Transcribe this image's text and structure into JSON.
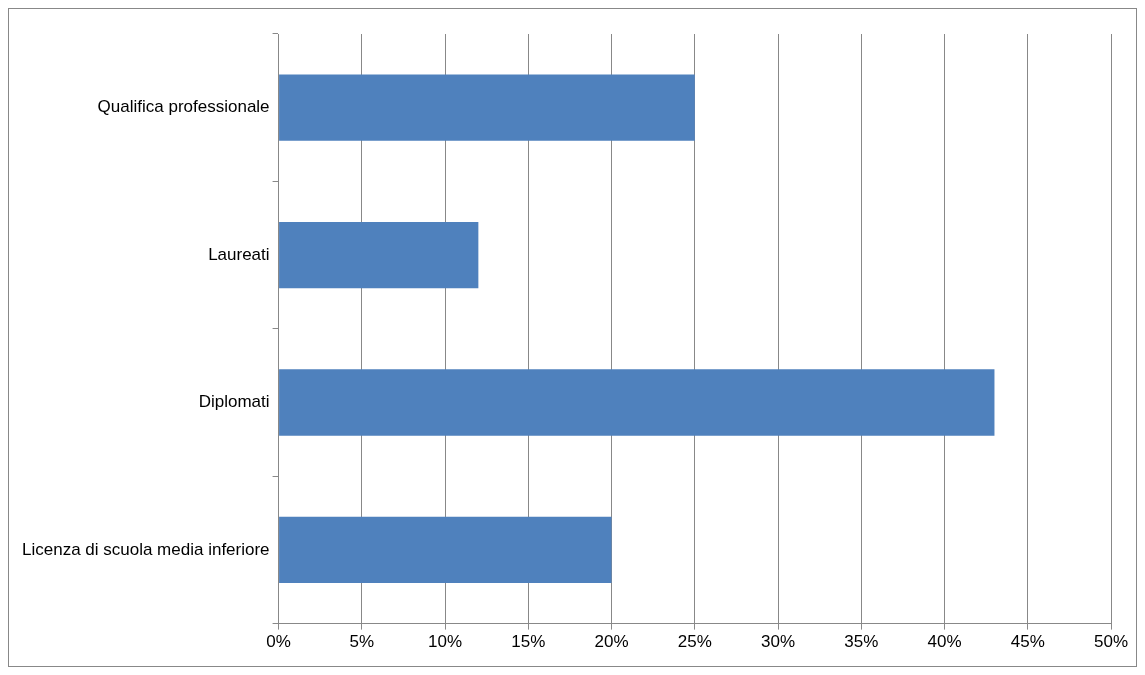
{
  "chart_data": {
    "type": "bar",
    "orientation": "horizontal",
    "categories": [
      "Qualifica professionale",
      "Laureati",
      "Diplomati",
      "Licenza di scuola media inferiore"
    ],
    "values": [
      25,
      12,
      43,
      20
    ],
    "color": "#4f81bd",
    "xlim": [
      0,
      50
    ],
    "xticks": [
      {
        "value": 0,
        "label": "0%"
      },
      {
        "value": 5,
        "label": "5%"
      },
      {
        "value": 10,
        "label": "10%"
      },
      {
        "value": 15,
        "label": "15%"
      },
      {
        "value": 20,
        "label": "20%"
      },
      {
        "value": 25,
        "label": "25%"
      },
      {
        "value": 30,
        "label": "30%"
      },
      {
        "value": 35,
        "label": "35%"
      },
      {
        "value": 40,
        "label": "40%"
      },
      {
        "value": 45,
        "label": "45%"
      },
      {
        "value": 50,
        "label": "50%"
      }
    ],
    "grid": "x",
    "legend": false
  }
}
